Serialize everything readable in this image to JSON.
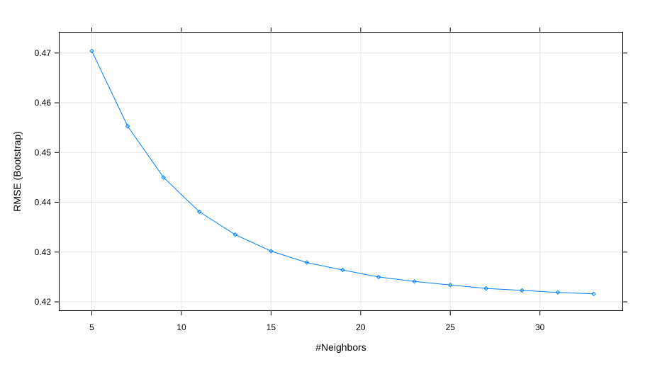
{
  "chart_data": {
    "type": "line",
    "xlabel": "#Neighbors",
    "ylabel": "RMSE (Bootstrap)",
    "xlim": [
      3.2,
      34.6
    ],
    "ylim": [
      0.4183,
      0.4741
    ],
    "xticks": [
      5,
      10,
      15,
      20,
      25,
      30
    ],
    "yticks": [
      0.42,
      0.43,
      0.44,
      0.45,
      0.46,
      0.47
    ],
    "grid": true,
    "series": [
      {
        "color": "#0080ff",
        "marker": "diamond",
        "x": [
          5,
          7,
          9,
          11,
          13,
          15,
          17,
          19,
          21,
          23,
          25,
          27,
          29,
          31,
          33
        ],
        "y": [
          0.4704,
          0.4553,
          0.445,
          0.4381,
          0.4335,
          0.4302,
          0.4279,
          0.4264,
          0.425,
          0.4241,
          0.4234,
          0.4227,
          0.4223,
          0.4219,
          0.4216
        ]
      }
    ]
  }
}
